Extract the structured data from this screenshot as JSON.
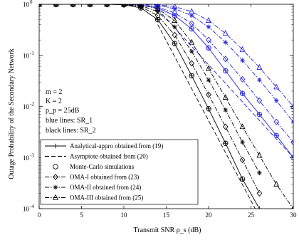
{
  "chart_data": {
    "type": "line",
    "xlabel": "Transmit SNR ρ_s (dB)",
    "ylabel": "Outage Probability of the Secondary Network",
    "xlim": [
      0,
      30
    ],
    "ylim": [
      0.0001,
      1
    ],
    "yscale": "log",
    "grid": false,
    "x_ticks": [
      0,
      5,
      10,
      15,
      20,
      25,
      30
    ],
    "x_tick_labels": [
      "0",
      "5",
      "10",
      "15",
      "20",
      "25",
      "30"
    ],
    "y_ticks": [
      1,
      0.1,
      0.01,
      0.001,
      0.0001
    ],
    "y_tick_labels": [
      {
        "base": "10",
        "exp": "0"
      },
      {
        "base": "10",
        "exp": "-1"
      },
      {
        "base": "10",
        "exp": "-2"
      },
      {
        "base": "10",
        "exp": "-3"
      },
      {
        "base": "10",
        "exp": "-4"
      }
    ],
    "annotations": [
      {
        "text": "m = 2"
      },
      {
        "text": "K = 2"
      },
      {
        "text": "ρ_p = 25dB"
      },
      {
        "text": "blue lines: SR_1"
      },
      {
        "text": "black lines: SR_2"
      }
    ],
    "colors": {
      "sr1": "#1f1fe0",
      "sr2": "#000000"
    },
    "legend": {
      "placement": "bottom-left",
      "entries": [
        {
          "label": "Analytical-appro obtained from (19)",
          "style": "solid",
          "marker": "plus"
        },
        {
          "label": "Asymptote obtained from (20)",
          "style": "dash",
          "marker": "none"
        },
        {
          "label": "Monte-Carlo simulations",
          "style": "none",
          "marker": "circle"
        },
        {
          "label": "OMA-I obtained from (23)",
          "style": "dashdot",
          "marker": "diamond"
        },
        {
          "label": "OMA-II obtained from (24)",
          "style": "dashdot",
          "marker": "asterisk"
        },
        {
          "label": "OMA-III obtained from (25)",
          "style": "dashdot",
          "marker": "triangle"
        }
      ]
    },
    "series": [
      {
        "group": "SR1",
        "kind": "analytical",
        "style": "solid",
        "marker": "plus",
        "color": "sr1",
        "x": [
          0,
          2,
          4,
          6,
          8,
          10,
          12,
          14,
          16,
          18,
          20,
          22,
          24,
          26,
          28,
          30
        ],
        "y": [
          1,
          1,
          1,
          1,
          1,
          0.99,
          0.96,
          0.85,
          0.6,
          0.33,
          0.14,
          0.05,
          0.018,
          0.007,
          0.0027,
          0.001
        ]
      },
      {
        "group": "SR1",
        "kind": "simulation",
        "style": "none",
        "marker": "circle",
        "color": "sr1",
        "x": [
          0,
          2,
          4,
          6,
          8,
          10,
          12,
          14,
          16,
          18,
          20,
          22,
          24,
          26,
          28,
          30
        ],
        "y": [
          1,
          1,
          1,
          1,
          1,
          0.99,
          0.96,
          0.85,
          0.6,
          0.33,
          0.14,
          0.05,
          0.018,
          0.007,
          0.0027,
          0.001
        ]
      },
      {
        "group": "SR1",
        "kind": "asymptote",
        "style": "dash",
        "marker": "none",
        "color": "sr1",
        "x": [
          14,
          30
        ],
        "y": [
          0.8,
          0.001
        ]
      },
      {
        "group": "SR1",
        "kind": "OMA-I",
        "style": "dashdot",
        "marker": "diamond",
        "color": "sr1",
        "x": [
          0,
          2,
          4,
          6,
          8,
          10,
          12,
          14,
          16,
          18,
          20,
          22,
          24,
          26,
          28,
          30
        ],
        "y": [
          1,
          1,
          1,
          1,
          1,
          0.99,
          0.97,
          0.88,
          0.68,
          0.42,
          0.2,
          0.085,
          0.034,
          0.013,
          0.005,
          0.002
        ]
      },
      {
        "group": "SR1",
        "kind": "OMA-II",
        "style": "dashdot",
        "marker": "asterisk",
        "color": "sr1",
        "x": [
          0,
          2,
          4,
          6,
          8,
          10,
          12,
          14,
          16,
          18,
          20,
          22,
          24,
          26,
          28,
          30
        ],
        "y": [
          1,
          1,
          1,
          1,
          1,
          1,
          0.99,
          0.95,
          0.82,
          0.6,
          0.36,
          0.18,
          0.08,
          0.033,
          0.013,
          0.005
        ]
      },
      {
        "group": "SR1",
        "kind": "OMA-III",
        "style": "dashdot",
        "marker": "triangle",
        "color": "sr1",
        "x": [
          0,
          2,
          4,
          6,
          8,
          10,
          12,
          14,
          16,
          18,
          20,
          22,
          24,
          26,
          28,
          30
        ],
        "y": [
          1,
          1,
          1,
          1,
          1,
          1,
          1,
          0.98,
          0.9,
          0.72,
          0.48,
          0.27,
          0.13,
          0.058,
          0.024,
          0.01
        ]
      },
      {
        "group": "SR2",
        "kind": "analytical",
        "style": "solid",
        "marker": "plus",
        "color": "sr2",
        "x": [
          0,
          2,
          4,
          6,
          8,
          10,
          12,
          14,
          16,
          18,
          20,
          22,
          24,
          26
        ],
        "y": [
          1,
          1,
          1,
          1,
          1,
          0.98,
          0.85,
          0.5,
          0.17,
          0.04,
          0.009,
          0.0019,
          0.00038,
          0.0001
        ]
      },
      {
        "group": "SR2",
        "kind": "simulation",
        "style": "none",
        "marker": "circle",
        "color": "sr2",
        "x": [
          0,
          2,
          4,
          6,
          8,
          10,
          12,
          14,
          16,
          18,
          20,
          22,
          24
        ],
        "y": [
          1,
          1,
          1,
          1,
          1,
          0.98,
          0.85,
          0.5,
          0.17,
          0.04,
          0.009,
          0.0019,
          0.00038
        ]
      },
      {
        "group": "SR2",
        "kind": "asymptote",
        "style": "dash",
        "marker": "none",
        "color": "sr2",
        "x": [
          14,
          25.5
        ],
        "y": [
          0.4,
          0.0001
        ]
      },
      {
        "group": "SR2",
        "kind": "OMA-I",
        "style": "dashdot",
        "marker": "diamond",
        "color": "sr2",
        "x": [
          0,
          2,
          4,
          6,
          8,
          10,
          12,
          14,
          16,
          18,
          20,
          22,
          24,
          26
        ],
        "y": [
          1,
          1,
          1,
          1,
          1,
          0.99,
          0.9,
          0.6,
          0.25,
          0.07,
          0.017,
          0.004,
          0.0009,
          0.0002
        ]
      },
      {
        "group": "SR2",
        "kind": "OMA-II",
        "style": "dashdot",
        "marker": "asterisk",
        "color": "sr2",
        "x": [
          0,
          2,
          4,
          6,
          8,
          10,
          12,
          14,
          16,
          18,
          20,
          22,
          24,
          26
        ],
        "y": [
          1,
          1,
          1,
          1,
          1,
          0.99,
          0.94,
          0.72,
          0.36,
          0.12,
          0.033,
          0.0085,
          0.002,
          0.0005
        ]
      },
      {
        "group": "SR2",
        "kind": "OMA-III",
        "style": "dashdot",
        "marker": "triangle",
        "color": "sr2",
        "x": [
          0,
          2,
          4,
          6,
          8,
          10,
          12,
          14,
          16,
          18,
          20,
          22,
          24,
          26,
          28,
          30
        ],
        "y": [
          1,
          1,
          1,
          1,
          1,
          1,
          0.97,
          0.82,
          0.48,
          0.18,
          0.055,
          0.015,
          0.004,
          0.0011,
          0.0003,
          0.0001
        ]
      }
    ]
  }
}
